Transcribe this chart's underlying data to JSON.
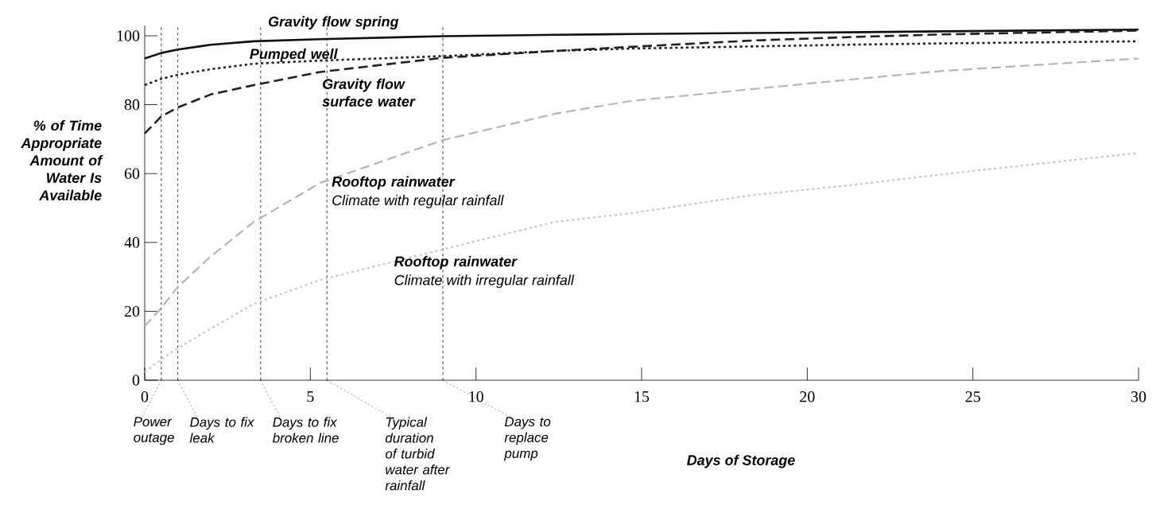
{
  "chart_data": {
    "type": "line",
    "xlabel": "Days of Storage",
    "ylabel": "% of Time Appropriate Amount of Water Is Available",
    "x": [
      0,
      0.5,
      1,
      2,
      3.3,
      5.3,
      9,
      12.4,
      14.7,
      18.3,
      21.2,
      24.1,
      30
    ],
    "series": [
      {
        "name": "Gravity flow spring",
        "color": "#111111",
        "line_style": "solid",
        "values": [
          93.4,
          95,
          96,
          97.4,
          98.4,
          99,
          99.9,
          100.3,
          100.5,
          100.8,
          101,
          101.3,
          101.8
        ]
      },
      {
        "name": "Pumped well",
        "color": "#222222",
        "line_style": "dotted",
        "values": [
          85.7,
          87.5,
          88.7,
          90.3,
          91.9,
          92.8,
          94.1,
          95.6,
          96.3,
          96.9,
          97.4,
          97.8,
          98.4
        ]
      },
      {
        "name": "Gravity flow surface water",
        "color": "#222222",
        "line_style": "dashed",
        "values": [
          71.6,
          76.6,
          79.2,
          83,
          85.7,
          89.5,
          93.6,
          95.6,
          96.8,
          98.6,
          99.6,
          100.4,
          101.5
        ]
      },
      {
        "name": "Rooftop rainwater",
        "color": "#b5b5b5",
        "line_style": "dashed",
        "values": [
          15.7,
          21,
          27.1,
          36,
          46,
          57.3,
          69.7,
          77.4,
          81.1,
          84.5,
          87.2,
          89.8,
          93.4
        ]
      },
      {
        "name": "Rooftop rainwater",
        "color": "#c8c8c8",
        "line_style": "dotted",
        "values": [
          2.4,
          6,
          9.3,
          15,
          22.2,
          29.1,
          38,
          46,
          48.5,
          53.7,
          56.5,
          59.8,
          66
        ]
      }
    ],
    "annotations": [
      "Climate with regular rainfall",
      "Climate with irregular rainfall"
    ],
    "ref_lines": [
      {
        "axis": "x",
        "value": 0.5,
        "label": "Power outage",
        "line_style": "dotted"
      },
      {
        "axis": "x",
        "value": 1,
        "label": "Days to fix leak",
        "line_style": "dotted"
      },
      {
        "axis": "x",
        "value": 3.5,
        "label": "Days to fix broken line",
        "line_style": "dotted"
      },
      {
        "axis": "x",
        "value": 5.5,
        "label": "Typical duration of turbid water after rainfall",
        "line_style": "dotted"
      },
      {
        "axis": "x",
        "value": 9,
        "label": "Days to replace pump",
        "line_style": "dotted"
      }
    ],
    "xlim": [
      0,
      30
    ],
    "ylim": [
      0,
      103
    ],
    "xticks": [
      0,
      5,
      10,
      15,
      20,
      25,
      30
    ],
    "yticks": [
      0,
      20,
      40,
      60,
      80,
      100
    ]
  }
}
